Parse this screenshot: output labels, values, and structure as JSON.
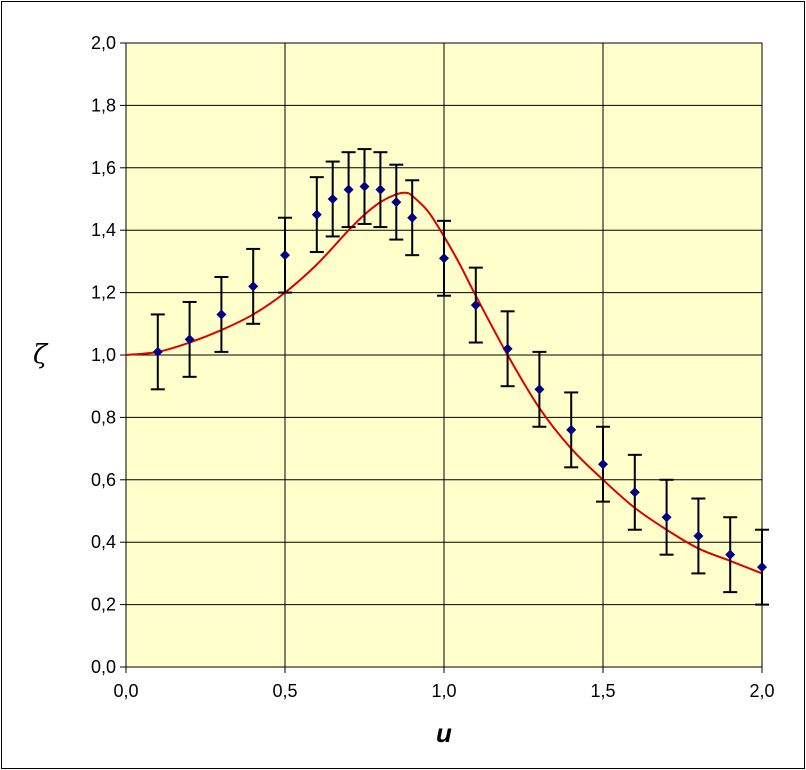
{
  "chart_data": {
    "type": "scatter",
    "title": "",
    "xlabel": "u",
    "ylabel": "ζ",
    "xlim": [
      0.0,
      2.0
    ],
    "ylim": [
      0.0,
      2.0
    ],
    "x_ticks": [
      "0,0",
      "0,5",
      "1,0",
      "1,5",
      "2,0"
    ],
    "y_ticks": [
      "0,0",
      "0,2",
      "0,4",
      "0,6",
      "0,8",
      "1,0",
      "1,2",
      "1,4",
      "1,6",
      "1,8",
      "2,0"
    ],
    "grid": true,
    "plot_background": "#ffffcc",
    "series": [
      {
        "kind": "points_with_error_bars",
        "color": "#000080",
        "error_bar_color": "#000000",
        "x": [
          0.1,
          0.2,
          0.3,
          0.4,
          0.5,
          0.6,
          0.65,
          0.7,
          0.75,
          0.8,
          0.85,
          0.9,
          1.0,
          1.1,
          1.2,
          1.3,
          1.4,
          1.5,
          1.6,
          1.7,
          1.8,
          1.9,
          2.0
        ],
        "y": [
          1.01,
          1.05,
          1.13,
          1.22,
          1.32,
          1.45,
          1.5,
          1.53,
          1.54,
          1.53,
          1.49,
          1.44,
          1.31,
          1.16,
          1.02,
          0.89,
          0.76,
          0.65,
          0.56,
          0.48,
          0.42,
          0.36,
          0.32
        ],
        "err": [
          0.12,
          0.12,
          0.12,
          0.12,
          0.12,
          0.12,
          0.12,
          0.12,
          0.12,
          0.12,
          0.12,
          0.12,
          0.12,
          0.12,
          0.12,
          0.12,
          0.12,
          0.12,
          0.12,
          0.12,
          0.12,
          0.12,
          0.12
        ]
      },
      {
        "kind": "curve",
        "color": "#dd0000",
        "x": [
          0.0,
          0.1,
          0.2,
          0.3,
          0.4,
          0.5,
          0.6,
          0.7,
          0.75,
          0.8,
          0.85,
          0.88,
          0.9,
          0.95,
          1.0,
          1.05,
          1.1,
          1.2,
          1.3,
          1.4,
          1.5,
          1.6,
          1.7,
          1.8,
          1.9,
          2.0
        ],
        "y": [
          1.0,
          1.01,
          1.04,
          1.08,
          1.13,
          1.2,
          1.29,
          1.4,
          1.45,
          1.49,
          1.515,
          1.52,
          1.51,
          1.46,
          1.38,
          1.29,
          1.19,
          1.0,
          0.83,
          0.7,
          0.6,
          0.51,
          0.44,
          0.38,
          0.34,
          0.3
        ]
      }
    ]
  }
}
